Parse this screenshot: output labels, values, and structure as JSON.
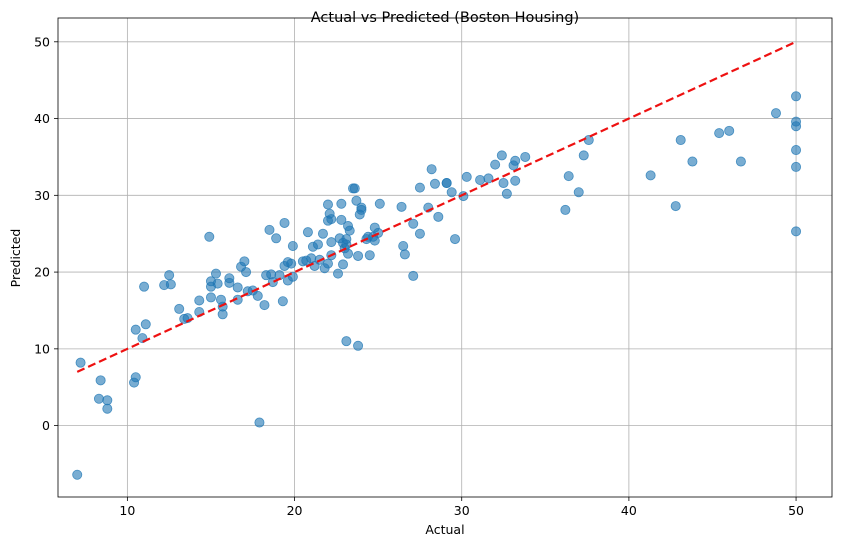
{
  "chart_data": {
    "type": "scatter",
    "title": "Actual vs Predicted (Boston Housing)",
    "xlabel": "Actual",
    "ylabel": "Predicted",
    "xlim": [
      5.85,
      52.15
    ],
    "ylim": [
      -9.3,
      53.1
    ],
    "xticks": [
      10,
      20,
      30,
      40,
      50
    ],
    "yticks": [
      0,
      10,
      20,
      30,
      40,
      50
    ],
    "grid": true,
    "point_color": "#1f77b4",
    "reference_line": {
      "color": "#ee1111",
      "style": "dashed",
      "x": [
        7,
        50
      ],
      "y": [
        7,
        50
      ]
    },
    "points": [
      [
        7.0,
        -6.4
      ],
      [
        7.2,
        8.2
      ],
      [
        8.3,
        3.5
      ],
      [
        8.4,
        5.9
      ],
      [
        8.8,
        2.2
      ],
      [
        8.8,
        3.3
      ],
      [
        10.4,
        5.6
      ],
      [
        10.5,
        6.3
      ],
      [
        10.5,
        12.5
      ],
      [
        10.9,
        11.4
      ],
      [
        11.0,
        18.1
      ],
      [
        11.1,
        13.2
      ],
      [
        12.2,
        18.3
      ],
      [
        12.5,
        19.6
      ],
      [
        12.6,
        18.4
      ],
      [
        13.1,
        15.2
      ],
      [
        13.4,
        13.9
      ],
      [
        13.6,
        14.0
      ],
      [
        14.3,
        16.3
      ],
      [
        14.3,
        14.8
      ],
      [
        14.9,
        24.6
      ],
      [
        15.0,
        16.7
      ],
      [
        15.0,
        18.1
      ],
      [
        15.0,
        18.8
      ],
      [
        15.3,
        19.8
      ],
      [
        15.4,
        18.5
      ],
      [
        15.6,
        16.4
      ],
      [
        15.7,
        15.5
      ],
      [
        15.7,
        14.5
      ],
      [
        16.1,
        19.2
      ],
      [
        16.1,
        18.6
      ],
      [
        16.6,
        16.4
      ],
      [
        16.6,
        18.0
      ],
      [
        16.8,
        20.7
      ],
      [
        17.0,
        21.4
      ],
      [
        17.1,
        20.0
      ],
      [
        17.2,
        17.5
      ],
      [
        17.5,
        17.6
      ],
      [
        17.8,
        16.9
      ],
      [
        17.9,
        0.4
      ],
      [
        18.2,
        15.7
      ],
      [
        18.3,
        19.6
      ],
      [
        18.5,
        25.5
      ],
      [
        18.6,
        19.7
      ],
      [
        18.7,
        18.7
      ],
      [
        18.9,
        24.4
      ],
      [
        19.1,
        19.6
      ],
      [
        19.3,
        16.2
      ],
      [
        19.4,
        20.8
      ],
      [
        19.4,
        26.4
      ],
      [
        19.6,
        21.3
      ],
      [
        19.6,
        18.9
      ],
      [
        19.8,
        21.1
      ],
      [
        19.9,
        19.4
      ],
      [
        19.9,
        23.4
      ],
      [
        20.5,
        21.4
      ],
      [
        20.7,
        21.5
      ],
      [
        20.8,
        25.2
      ],
      [
        21.0,
        21.8
      ],
      [
        21.1,
        23.3
      ],
      [
        21.2,
        20.8
      ],
      [
        21.4,
        23.6
      ],
      [
        21.5,
        21.6
      ],
      [
        21.7,
        25.0
      ],
      [
        21.8,
        20.5
      ],
      [
        22.0,
        21.1
      ],
      [
        22.0,
        26.7
      ],
      [
        22.0,
        28.8
      ],
      [
        22.1,
        27.6
      ],
      [
        22.2,
        22.2
      ],
      [
        22.2,
        23.9
      ],
      [
        22.2,
        26.9
      ],
      [
        22.6,
        19.8
      ],
      [
        22.7,
        24.4
      ],
      [
        22.8,
        26.8
      ],
      [
        22.8,
        28.9
      ],
      [
        22.9,
        21.0
      ],
      [
        22.9,
        23.8
      ],
      [
        23.0,
        23.1
      ],
      [
        23.1,
        11.0
      ],
      [
        23.1,
        23.6
      ],
      [
        23.1,
        24.3
      ],
      [
        23.2,
        26.0
      ],
      [
        23.2,
        22.4
      ],
      [
        23.3,
        25.4
      ],
      [
        23.5,
        30.9
      ],
      [
        23.6,
        30.9
      ],
      [
        23.7,
        29.3
      ],
      [
        23.8,
        10.4
      ],
      [
        23.8,
        22.1
      ],
      [
        23.9,
        27.5
      ],
      [
        24.0,
        28.4
      ],
      [
        24.0,
        28.1
      ],
      [
        24.3,
        24.3
      ],
      [
        24.4,
        24.6
      ],
      [
        24.5,
        22.2
      ],
      [
        24.7,
        24.6
      ],
      [
        24.8,
        25.8
      ],
      [
        24.8,
        24.1
      ],
      [
        25.0,
        25.1
      ],
      [
        25.1,
        28.9
      ],
      [
        26.4,
        28.5
      ],
      [
        26.5,
        23.4
      ],
      [
        26.6,
        22.3
      ],
      [
        27.1,
        26.3
      ],
      [
        27.1,
        19.5
      ],
      [
        27.5,
        31.0
      ],
      [
        27.5,
        25.0
      ],
      [
        28.0,
        28.4
      ],
      [
        28.2,
        33.4
      ],
      [
        28.4,
        31.5
      ],
      [
        28.6,
        27.2
      ],
      [
        29.1,
        31.6
      ],
      [
        29.1,
        31.6
      ],
      [
        29.4,
        30.4
      ],
      [
        29.6,
        24.3
      ],
      [
        30.1,
        29.9
      ],
      [
        30.3,
        32.4
      ],
      [
        31.1,
        32.0
      ],
      [
        31.6,
        32.2
      ],
      [
        32.0,
        34.0
      ],
      [
        32.4,
        35.2
      ],
      [
        32.5,
        31.6
      ],
      [
        32.7,
        30.2
      ],
      [
        33.1,
        33.9
      ],
      [
        33.2,
        34.5
      ],
      [
        33.2,
        31.9
      ],
      [
        33.8,
        35.0
      ],
      [
        36.2,
        28.1
      ],
      [
        36.4,
        32.5
      ],
      [
        37.0,
        30.4
      ],
      [
        37.3,
        35.2
      ],
      [
        37.6,
        37.2
      ],
      [
        41.3,
        32.6
      ],
      [
        42.8,
        28.6
      ],
      [
        43.1,
        37.2
      ],
      [
        43.8,
        34.4
      ],
      [
        45.4,
        38.1
      ],
      [
        46.0,
        38.4
      ],
      [
        46.7,
        34.4
      ],
      [
        48.8,
        40.7
      ],
      [
        50.0,
        42.9
      ],
      [
        50.0,
        39.6
      ],
      [
        50.0,
        39.0
      ],
      [
        50.0,
        35.9
      ],
      [
        50.0,
        33.7
      ],
      [
        50.0,
        25.3
      ]
    ]
  }
}
